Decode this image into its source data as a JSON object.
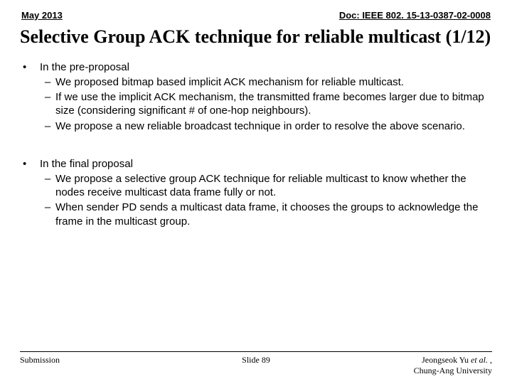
{
  "header": {
    "date": "May 2013",
    "doc": "Doc: IEEE 802. 15-13-0387-02-0008"
  },
  "title": "Selective Group ACK technique for reliable multicast (1/12)",
  "bullets": [
    {
      "lead": "In the pre-proposal",
      "subs": [
        "We proposed bitmap based implicit ACK mechanism for reliable multicast.",
        "If we use the implicit ACK mechanism, the transmitted frame becomes larger due to bitmap size (considering significant # of one-hop neighbours).",
        "We propose a new reliable broadcast technique in order to resolve the above scenario."
      ]
    },
    {
      "lead": "In the final proposal",
      "subs": [
        "We propose a selective group ACK technique for reliable multicast to know whether the nodes receive multicast data frame fully or not.",
        "When sender PD sends a multicast data frame, it chooses the groups to acknowledge the frame in the multicast group."
      ]
    }
  ],
  "footer": {
    "left": "Submission",
    "center": "Slide 89",
    "right_line1_pre": "Jeongseok Yu ",
    "right_line1_it": "et al.",
    "right_line1_post": " ,",
    "right_line2": "Chung-Ang University"
  }
}
